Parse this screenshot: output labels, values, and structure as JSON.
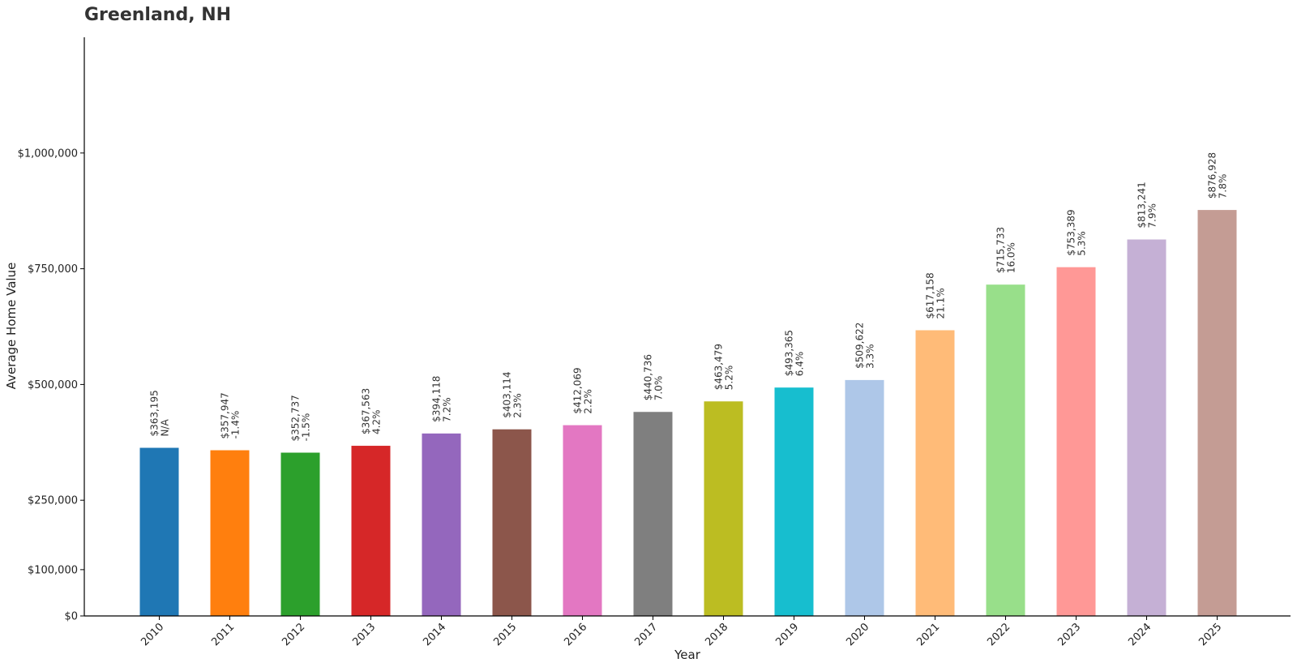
{
  "chart_data": {
    "type": "bar",
    "title": "Greenland, NH",
    "xlabel": "Year",
    "ylabel": "Average Home Value",
    "ylim": [
      0,
      1250000
    ],
    "yticks": [
      0,
      100000,
      250000,
      500000,
      750000,
      1000000
    ],
    "ytick_labels": [
      "$0",
      "$100,000",
      "$250,000",
      "$500,000",
      "$750,000",
      "$1,000,000"
    ],
    "grid": false,
    "categories": [
      "2010",
      "2011",
      "2012",
      "2013",
      "2014",
      "2015",
      "2016",
      "2017",
      "2018",
      "2019",
      "2020",
      "2021",
      "2022",
      "2023",
      "2024",
      "2025"
    ],
    "values": [
      363195,
      357947,
      352737,
      367563,
      394118,
      403114,
      412069,
      440736,
      463479,
      493365,
      509622,
      617158,
      715733,
      753389,
      813241,
      876928
    ],
    "value_labels": [
      "$363,195",
      "$357,947",
      "$352,737",
      "$367,563",
      "$394,118",
      "$403,114",
      "$412,069",
      "$440,736",
      "$463,479",
      "$493,365",
      "$509,622",
      "$617,158",
      "$715,733",
      "$753,389",
      "$813,241",
      "$876,928"
    ],
    "change_labels": [
      "N/A",
      "-1.4%",
      "-1.5%",
      "4.2%",
      "7.2%",
      "2.3%",
      "2.2%",
      "7.0%",
      "5.2%",
      "6.4%",
      "3.3%",
      "21.1%",
      "16.0%",
      "5.3%",
      "7.9%",
      "7.8%"
    ],
    "colors": [
      "#1f77b4",
      "#ff7f0e",
      "#2ca02c",
      "#d62728",
      "#9467bd",
      "#8c564b",
      "#e377c2",
      "#7f7f7f",
      "#bcbd22",
      "#17becf",
      "#aec7e8",
      "#ffbb78",
      "#98df8a",
      "#ff9896",
      "#c5b0d5",
      "#c49c94"
    ]
  }
}
